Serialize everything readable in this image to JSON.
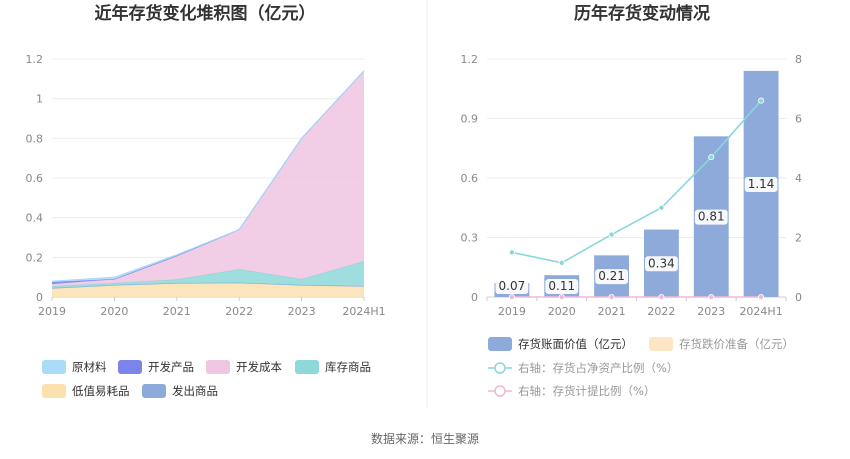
{
  "source": "数据来源：恒生聚源",
  "chart_data": [
    {
      "type": "area",
      "stacked": true,
      "title": "近年存货变化堆积图（亿元）",
      "categories": [
        "2019",
        "2020",
        "2021",
        "2022",
        "2023",
        "2024H1"
      ],
      "ylim": [
        0,
        1.2
      ],
      "yticks": [
        "0",
        "0.2",
        "0.4",
        "0.6",
        "0.8",
        "1",
        "1.2"
      ],
      "grid": true,
      "legend_position": "bottom",
      "series": [
        {
          "name": "低值易耗品",
          "color": "#fbe0b0",
          "values": [
            0.045,
            0.06,
            0.07,
            0.072,
            0.06,
            0.055
          ]
        },
        {
          "name": "发出商品",
          "color": "#8eaadb",
          "values": [
            0.0,
            0.0,
            0.0,
            0.0,
            0.0,
            0.0
          ]
        },
        {
          "name": "库存商品",
          "color": "#8dd8d8",
          "values": [
            0.01,
            0.01,
            0.018,
            0.068,
            0.03,
            0.125
          ]
        },
        {
          "name": "开发成本",
          "color": "#efc6e2",
          "values": [
            0.01,
            0.02,
            0.12,
            0.2,
            0.71,
            0.96
          ]
        },
        {
          "name": "开发产品",
          "color": "#7c84ec",
          "values": [
            0.01,
            0.0,
            0.0,
            0.0,
            0.0,
            0.0
          ]
        },
        {
          "name": "原材料",
          "color": "#a8dcf8",
          "values": [
            0.005,
            0.01,
            0.005,
            0.0,
            0.0,
            0.0
          ]
        }
      ],
      "legend_order": [
        "原材料",
        "开发产品",
        "开发成本",
        "库存商品",
        "低值易耗品",
        "发出商品"
      ]
    },
    {
      "type": "bar",
      "title": "历年存货变动情况",
      "categories": [
        "2019",
        "2020",
        "2021",
        "2022",
        "2023",
        "2024H1"
      ],
      "ylim": [
        0,
        1.2
      ],
      "yticks": [
        "0",
        "0.3",
        "0.6",
        "0.9",
        "1.2"
      ],
      "y2lim": [
        0,
        8
      ],
      "y2ticks": [
        "0",
        "2",
        "4",
        "6",
        "8"
      ],
      "grid": true,
      "legend_position": "bottom",
      "series": [
        {
          "name": "存货账面价值（亿元）",
          "type": "bar",
          "axis": "left",
          "color": "#8eaadb",
          "values": [
            0.07,
            0.11,
            0.21,
            0.34,
            0.81,
            1.14
          ],
          "labels": [
            "0.07",
            "0.11",
            "0.21",
            "0.34",
            "0.81",
            "1.14"
          ]
        },
        {
          "name": "存货跌价准备（亿元）",
          "type": "bar",
          "axis": "left",
          "color": "#fde6c4",
          "values": [
            0,
            0,
            0,
            0,
            0,
            0
          ]
        },
        {
          "name": "右轴：存货占净资产比例（%）",
          "type": "line",
          "axis": "right",
          "color": "#8ad6dc",
          "values": [
            1.5,
            1.15,
            2.1,
            3.0,
            4.7,
            6.6
          ]
        },
        {
          "name": "右轴：存货计提比例（%）",
          "type": "line",
          "axis": "right",
          "color": "#f0b8d8",
          "values": [
            0,
            0,
            0,
            0,
            0,
            0
          ]
        }
      ]
    }
  ]
}
